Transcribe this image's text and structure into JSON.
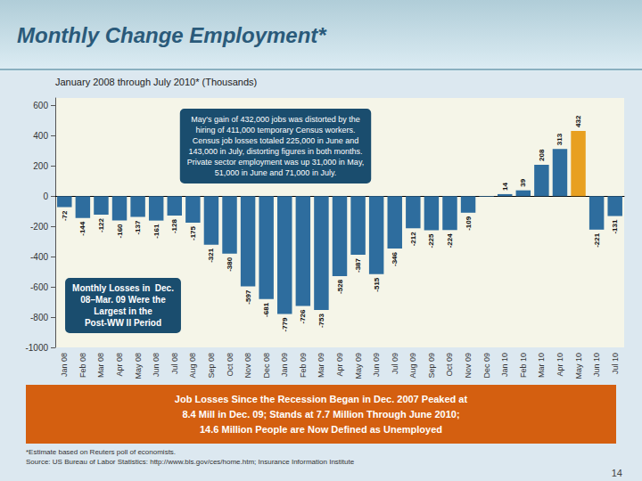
{
  "chart_data": {
    "type": "bar",
    "title": "Monthly Change Employment*",
    "subtitle": "January 2008 through July 2010* (Thousands)",
    "categories": [
      "Jan 08",
      "Feb 08",
      "Mar 08",
      "Apr 08",
      "May 08",
      "Jun 08",
      "Jul 08",
      "Aug 08",
      "Sep 08",
      "Oct 08",
      "Nov 08",
      "Dec 08",
      "Jan 09",
      "Feb 09",
      "Mar 09",
      "Apr 09",
      "May 09",
      "Jun 09",
      "Jul 09",
      "Aug 09",
      "Sep 09",
      "Oct 09",
      "Nov 09",
      "Dec 09",
      "Jan 10",
      "Feb 10",
      "Mar 10",
      "Apr 10",
      "May 10",
      "Jun 10",
      "Jul 10"
    ],
    "values": [
      -72,
      -144,
      -122,
      -160,
      -137,
      -161,
      -128,
      -175,
      -321,
      -380,
      -597,
      -681,
      -779,
      -726,
      -753,
      -528,
      -387,
      -515,
      -346,
      -212,
      -225,
      -224,
      -109,
      -4,
      14,
      39,
      208,
      313,
      432,
      -221,
      -131
    ],
    "colors": [
      "#2e6d9e",
      "#2e6d9e",
      "#2e6d9e",
      "#2e6d9e",
      "#2e6d9e",
      "#2e6d9e",
      "#2e6d9e",
      "#2e6d9e",
      "#2e6d9e",
      "#2e6d9e",
      "#2e6d9e",
      "#2e6d9e",
      "#2e6d9e",
      "#2e6d9e",
      "#2e6d9e",
      "#2e6d9e",
      "#2e6d9e",
      "#2e6d9e",
      "#2e6d9e",
      "#2e6d9e",
      "#2e6d9e",
      "#2e6d9e",
      "#2e6d9e",
      "#2e6d9e",
      "#2e6d9e",
      "#2e6d9e",
      "#2e6d9e",
      "#2e6d9e",
      "#e8a020",
      "#2e6d9e",
      "#2e6d9e"
    ],
    "ylim": [
      -1000,
      650
    ],
    "yticks": [
      -1000,
      -800,
      -600,
      -400,
      -200,
      0,
      200,
      400,
      600
    ],
    "grid": false,
    "data_labels": true,
    "value_labels": [
      "-72",
      "-144",
      "-122",
      "-160",
      "-137",
      "-161",
      "-128",
      "-175",
      "-321",
      "-380",
      "-597",
      "-681",
      "-779",
      "-726",
      "-753",
      "-528",
      "-387",
      "-515",
      "-346",
      "-212",
      "-225",
      "-224",
      "-109",
      null,
      "14",
      "39",
      "208",
      "313",
      "432",
      "-221",
      "-131"
    ],
    "annotations": [
      "May's gain of 432,000 jobs was distorted by the\nhiring of 411,000 temporary Census workers.\nCensus job losses totaled 225,000 in June and\n143,000 in July, distorting figures in both months.\nPrivate sector employment was up 31,000 in May,\n51,000 in June and 71,000 in July.",
      "Monthly Losses in  Dec.\n08–Mar. 09 Were the\nLargest in the\nPost-WW II Period",
      "Job Losses Since the Recession Began in Dec. 2007 Peaked at\n8.4 Mill in Dec. 09; Stands at 7.7 Million Through June 2010;\n14.6 Million People are Now Defined as Unemployed",
      "*Estimate based on Reuters poll of economists.",
      "Source: US Bureau of Labor Statistics: http://www.bls.gov/ces/home.htm; Insurance Information Institute",
      "14"
    ]
  }
}
